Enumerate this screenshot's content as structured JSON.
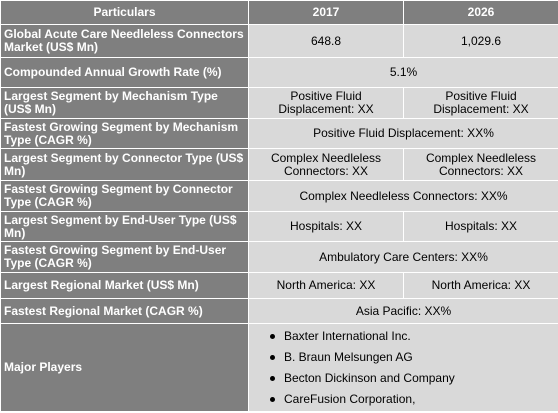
{
  "table": {
    "header": [
      "Particulars",
      "2017",
      "2026"
    ],
    "rows": [
      {
        "label": "Global Acute Care Needleless Connectors Market (US$ Mn)",
        "values": [
          "648.8",
          "1,029.6"
        ]
      },
      {
        "label": "Compounded Annual Growth Rate (%)",
        "values": [
          "5.1%"
        ]
      },
      {
        "label": "Largest Segment by Mechanism Type (US$ Mn)",
        "values": [
          "Positive Fluid Displacement: XX",
          "Positive Fluid Displacement: XX"
        ]
      },
      {
        "label": "Fastest Growing Segment by Mechanism Type (CAGR %)",
        "values": [
          "Positive Fluid Displacement: XX%"
        ]
      },
      {
        "label": "Largest Segment by Connector Type (US$ Mn)",
        "values": [
          "Complex Needleless Connectors: XX",
          "Complex Needleless Connectors: XX"
        ]
      },
      {
        "label": "Fastest Growing Segment by Connector Type (CAGR %)",
        "values": [
          "Complex Needleless Connectors: XX%"
        ]
      },
      {
        "label": "Largest Segment by End-User Type (US$ Mn)",
        "values": [
          "Hospitals: XX",
          "Hospitals: XX"
        ]
      },
      {
        "label": "Fastest Growing Segment by End-User Type (CAGR %)",
        "values": [
          "Ambulatory Care Centers: XX%"
        ]
      },
      {
        "label": "Largest Regional Market (US$ Mn)",
        "values": [
          "North America: XX",
          "North America: XX"
        ]
      },
      {
        "label": "Fastest Regional Market (CAGR %)",
        "values": [
          "Asia Pacific: XX%"
        ]
      },
      {
        "label": "Major Players",
        "players": [
          "Baxter International Inc.",
          "B. Braun Melsungen AG",
          "Becton Dickinson and Company",
          "CareFusion Corporation,"
        ]
      }
    ]
  }
}
